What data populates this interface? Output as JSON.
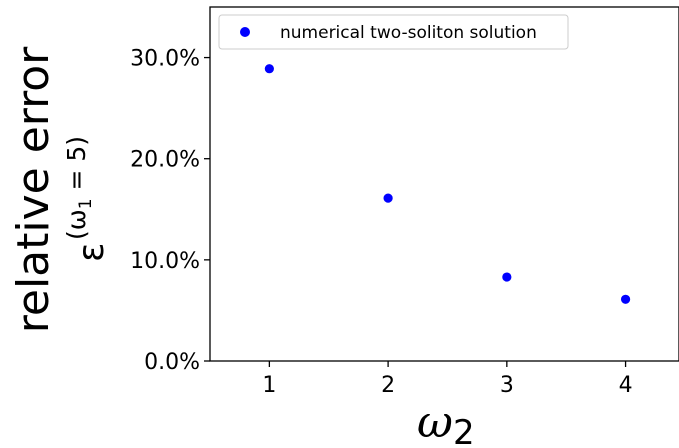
{
  "chart_data": {
    "type": "scatter",
    "xlabel": "ω2",
    "ylabel_main": "relative error",
    "ylabel_symbol": "ε",
    "ylabel_sup_left": "(ω",
    "ylabel_sup_sub": "1",
    "ylabel_sup_right": " = 5)",
    "xlabel_symbol": "ω",
    "xlabel_sub": "2",
    "xlim": [
      0.5,
      4.45
    ],
    "ylim": [
      0,
      0.35
    ],
    "xticks": [
      1,
      2,
      3,
      4
    ],
    "xtick_labels": [
      "1",
      "2",
      "3",
      "4"
    ],
    "yticks": [
      0,
      0.1,
      0.2,
      0.3
    ],
    "ytick_labels": [
      "0.0%",
      "10.0%",
      "20.0%",
      "30.0%"
    ],
    "legend_position": "upper-left",
    "series": [
      {
        "name": "numerical two-soliton solution",
        "color": "#0000ff",
        "x": [
          1,
          2,
          3,
          4
        ],
        "y": [
          0.289,
          0.161,
          0.083,
          0.061
        ]
      }
    ]
  }
}
